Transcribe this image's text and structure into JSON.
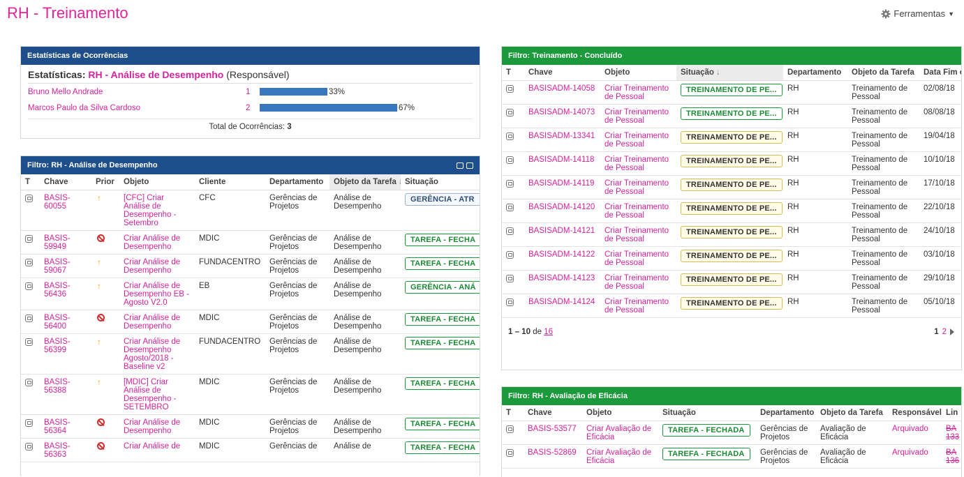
{
  "page": {
    "title": "RH - Treinamento",
    "tools_label": "Ferramentas"
  },
  "stats": {
    "header": "Estatísticas de Ocorrências",
    "label": "Estatísticas:",
    "filter": "RH - Análise de Desempenho",
    "mode": "(Responsável)",
    "rows": [
      {
        "name": "Bruno Mello Andrade",
        "count": "1",
        "pct": "33%",
        "value": 33
      },
      {
        "name": "Marcos Paulo da Silva Cardoso",
        "count": "2",
        "pct": "67%",
        "value": 67
      }
    ],
    "total_label": "Total de Ocorrências:",
    "total_value": "3"
  },
  "analise": {
    "header": "Filtro: RH - Análise de Desempenho",
    "columns": [
      "T",
      "Chave",
      "Prior",
      "Objeto",
      "Cliente",
      "Departamento",
      "Objeto da Tarefa",
      "Situação"
    ],
    "rows": [
      {
        "key": "BASIS-60055",
        "prio": "up",
        "obj": "[CFC] Criar Análise de Desempenho - Setembro",
        "client": "CFC",
        "dept": "Gerências de Projetos",
        "task": "Análise de Desempenho",
        "status": "GERÊNCIA - ATR",
        "stype": "blue"
      },
      {
        "key": "BASIS-59949",
        "prio": "block",
        "obj": "Criar Análise de Desempenho",
        "client": "MDIC",
        "dept": "Gerências de Projetos",
        "task": "Análise de Desempenho",
        "status": "TAREFA - FECHA",
        "stype": "green"
      },
      {
        "key": "BASIS-59067",
        "prio": "up",
        "obj": "Criar Análise de Desempenho",
        "client": "FUNDACENTRO",
        "dept": "Gerências de Projetos",
        "task": "Análise de Desempenho",
        "status": "TAREFA - FECHA",
        "stype": "green"
      },
      {
        "key": "BASIS-56436",
        "prio": "up",
        "obj": "Criar Análise de Desempenho EB - Agosto V2.0",
        "client": "EB",
        "dept": "Gerências de Projetos",
        "task": "Análise de Desempenho",
        "status": "GERÊNCIA - ANÁ",
        "stype": "green"
      },
      {
        "key": "BASIS-56400",
        "prio": "block",
        "obj": "Criar Análise de Desempenho",
        "client": "MDIC",
        "dept": "Gerências de Projetos",
        "task": "Análise de Desempenho",
        "status": "TAREFA - FECHA",
        "stype": "green"
      },
      {
        "key": "BASIS-56399",
        "prio": "up",
        "obj": "Criar Análise de Desempenho Agosto/2018 - Baseline v2",
        "client": "FUNDACENTRO",
        "dept": "Gerências de Projetos",
        "task": "Análise de Desempenho",
        "status": "TAREFA - FECHA",
        "stype": "green"
      },
      {
        "key": "BASIS-56388",
        "prio": "up",
        "obj": "[MDIC] Criar Análise de Desempenho - SETEMBRO",
        "client": "MDIC",
        "dept": "Gerências de Projetos",
        "task": "Análise de Desempenho",
        "status": "TAREFA - FECHA",
        "stype": "green"
      },
      {
        "key": "BASIS-56364",
        "prio": "block",
        "obj": "Criar Análise de Desempenho",
        "client": "MDIC",
        "dept": "Gerências de Projetos",
        "task": "Análise de Desempenho",
        "status": "TAREFA - FECHA",
        "stype": "green"
      },
      {
        "key": "BASIS-56363",
        "prio": "block",
        "obj": "Criar Análise de",
        "client": "MDIC",
        "dept": "Gerências de",
        "task": "Análise de",
        "status": "TAREFA - FECHA",
        "stype": "green"
      }
    ]
  },
  "treinamento": {
    "header": "Filtro: Treinamento - Concluído",
    "columns": [
      "T",
      "Chave",
      "Objeto",
      "Situação",
      "Departamento",
      "Objeto da Tarefa",
      "Data Fim c"
    ],
    "rows": [
      {
        "key": "BASISADM-14058",
        "obj": "Criar Treinamento de Pessoal",
        "status": "TREINAMENTO DE PE...",
        "stype": "green",
        "dept": "RH",
        "task": "Treinamento de Pessoal",
        "date": "02/08/18"
      },
      {
        "key": "BASISADM-14073",
        "obj": "Criar Treinamento de Pessoal",
        "status": "TREINAMENTO DE PE...",
        "stype": "green",
        "dept": "RH",
        "task": "Treinamento de Pessoal",
        "date": "08/08/18"
      },
      {
        "key": "BASISADM-13341",
        "obj": "Criar Treinamento de Pessoal",
        "status": "TREINAMENTO DE PE...",
        "stype": "yellow",
        "dept": "RH",
        "task": "Treinamento de Pessoal",
        "date": "19/04/18"
      },
      {
        "key": "BASISADM-14118",
        "obj": "Criar Treinamento de Pessoal",
        "status": "TREINAMENTO DE PE...",
        "stype": "yellow",
        "dept": "RH",
        "task": "Treinamento de Pessoal",
        "date": "10/10/18"
      },
      {
        "key": "BASISADM-14119",
        "obj": "Criar Treinamento de Pessoal",
        "status": "TREINAMENTO DE PE...",
        "stype": "yellow",
        "dept": "RH",
        "task": "Treinamento de Pessoal",
        "date": "17/10/18"
      },
      {
        "key": "BASISADM-14120",
        "obj": "Criar Treinamento de Pessoal",
        "status": "TREINAMENTO DE PE...",
        "stype": "yellow",
        "dept": "RH",
        "task": "Treinamento de Pessoal",
        "date": "22/10/18"
      },
      {
        "key": "BASISADM-14121",
        "obj": "Criar Treinamento de Pessoal",
        "status": "TREINAMENTO DE PE...",
        "stype": "yellow",
        "dept": "RH",
        "task": "Treinamento de Pessoal",
        "date": "24/10/18"
      },
      {
        "key": "BASISADM-14122",
        "obj": "Criar Treinamento de Pessoal",
        "status": "TREINAMENTO DE PE...",
        "stype": "yellow",
        "dept": "RH",
        "task": "Treinamento de Pessoal",
        "date": "03/10/18"
      },
      {
        "key": "BASISADM-14123",
        "obj": "Criar Treinamento de Pessoal",
        "status": "TREINAMENTO DE PE...",
        "stype": "yellow",
        "dept": "RH",
        "task": "Treinamento de Pessoal",
        "date": "29/10/18"
      },
      {
        "key": "BASISADM-14124",
        "obj": "Criar Treinamento de Pessoal",
        "status": "TREINAMENTO DE PE...",
        "stype": "yellow",
        "dept": "RH",
        "task": "Treinamento de Pessoal",
        "date": "05/10/18"
      }
    ],
    "pager": {
      "range": "1 – 10",
      "of": "de",
      "total": "16",
      "page1": "1",
      "page2": "2"
    }
  },
  "eficacia": {
    "header": "Filtro: RH - Avaliação de Eficácia",
    "columns": [
      "T",
      "Chave",
      "Objeto",
      "Situação",
      "Departamento",
      "Objeto da Tarefa",
      "Responsável",
      "Lin"
    ],
    "rows": [
      {
        "key": "BASIS-53577",
        "obj": "Criar Avaliação de Eficácia",
        "status": "TAREFA - FECHADA",
        "dept": "Gerências de Projetos",
        "task": "Avaliação de Eficácia",
        "resp": "Arquivado",
        "link": "BA 133"
      },
      {
        "key": "BASIS-52869",
        "obj": "Criar Avaliação de Eficácia",
        "status": "TAREFA - FECHADA",
        "dept": "Gerências de Projetos",
        "task": "Avaliação de Eficácia",
        "resp": "Arquivado",
        "link": "BA 136"
      }
    ]
  },
  "colors": {
    "accent": "#e0249c",
    "header_blue": "#1f4e8c",
    "header_green": "#1b9a3b",
    "bar": "#3a76bd"
  }
}
